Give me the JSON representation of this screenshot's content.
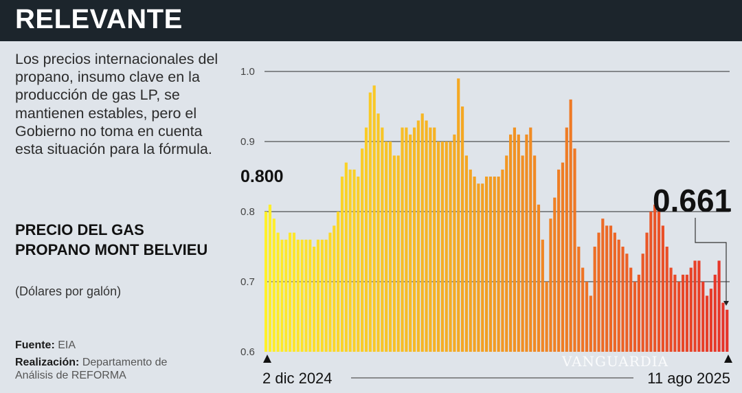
{
  "header": {
    "title": "RELEVANTE"
  },
  "description": "Los precios internacionales del propano, insumo clave en la producción de gas LP, se mantienen estables, pero el Gobierno no toma en cuenta esta situación para la fórmula.",
  "footer": {
    "source_label": "Fuente:",
    "source_value": "EIA",
    "credit_label": "Realización:",
    "credit_value": "Departamento de Análisis de REFORMA"
  },
  "watermark": "VANGUARDIA",
  "chart_data": {
    "type": "bar",
    "title": "PRECIO DEL GAS PROPANO MONT BELVIEU",
    "ylabel": "(Dólares por galón)",
    "ylim": [
      0.6,
      1.0
    ],
    "yticks": [
      "0.6",
      "0.7",
      "0.8",
      "0.9",
      "1.0"
    ],
    "grid": true,
    "x_start_label": "2 dic 2024",
    "x_end_label": "11 ago 2025",
    "first_value_label": "0.800",
    "last_value_label": "0.661",
    "colors": {
      "start": "#fff12a",
      "mid": "#f29a22",
      "end": "#e6322a"
    },
    "values": [
      0.8,
      0.81,
      0.79,
      0.77,
      0.76,
      0.76,
      0.77,
      0.77,
      0.76,
      0.76,
      0.76,
      0.76,
      0.75,
      0.76,
      0.76,
      0.76,
      0.77,
      0.78,
      0.8,
      0.85,
      0.87,
      0.86,
      0.86,
      0.85,
      0.89,
      0.92,
      0.97,
      0.98,
      0.94,
      0.92,
      0.9,
      0.9,
      0.88,
      0.88,
      0.92,
      0.92,
      0.91,
      0.92,
      0.93,
      0.94,
      0.93,
      0.92,
      0.92,
      0.9,
      0.9,
      0.9,
      0.9,
      0.91,
      0.99,
      0.95,
      0.88,
      0.86,
      0.85,
      0.84,
      0.84,
      0.85,
      0.85,
      0.85,
      0.85,
      0.86,
      0.88,
      0.91,
      0.92,
      0.91,
      0.88,
      0.91,
      0.92,
      0.88,
      0.81,
      0.76,
      0.7,
      0.79,
      0.82,
      0.86,
      0.87,
      0.92,
      0.96,
      0.89,
      0.75,
      0.72,
      0.7,
      0.68,
      0.75,
      0.77,
      0.79,
      0.78,
      0.78,
      0.77,
      0.76,
      0.75,
      0.74,
      0.72,
      0.7,
      0.71,
      0.74,
      0.77,
      0.8,
      0.81,
      0.8,
      0.78,
      0.75,
      0.72,
      0.71,
      0.7,
      0.71,
      0.71,
      0.72,
      0.73,
      0.73,
      0.7,
      0.68,
      0.69,
      0.71,
      0.73,
      0.67,
      0.66
    ]
  }
}
